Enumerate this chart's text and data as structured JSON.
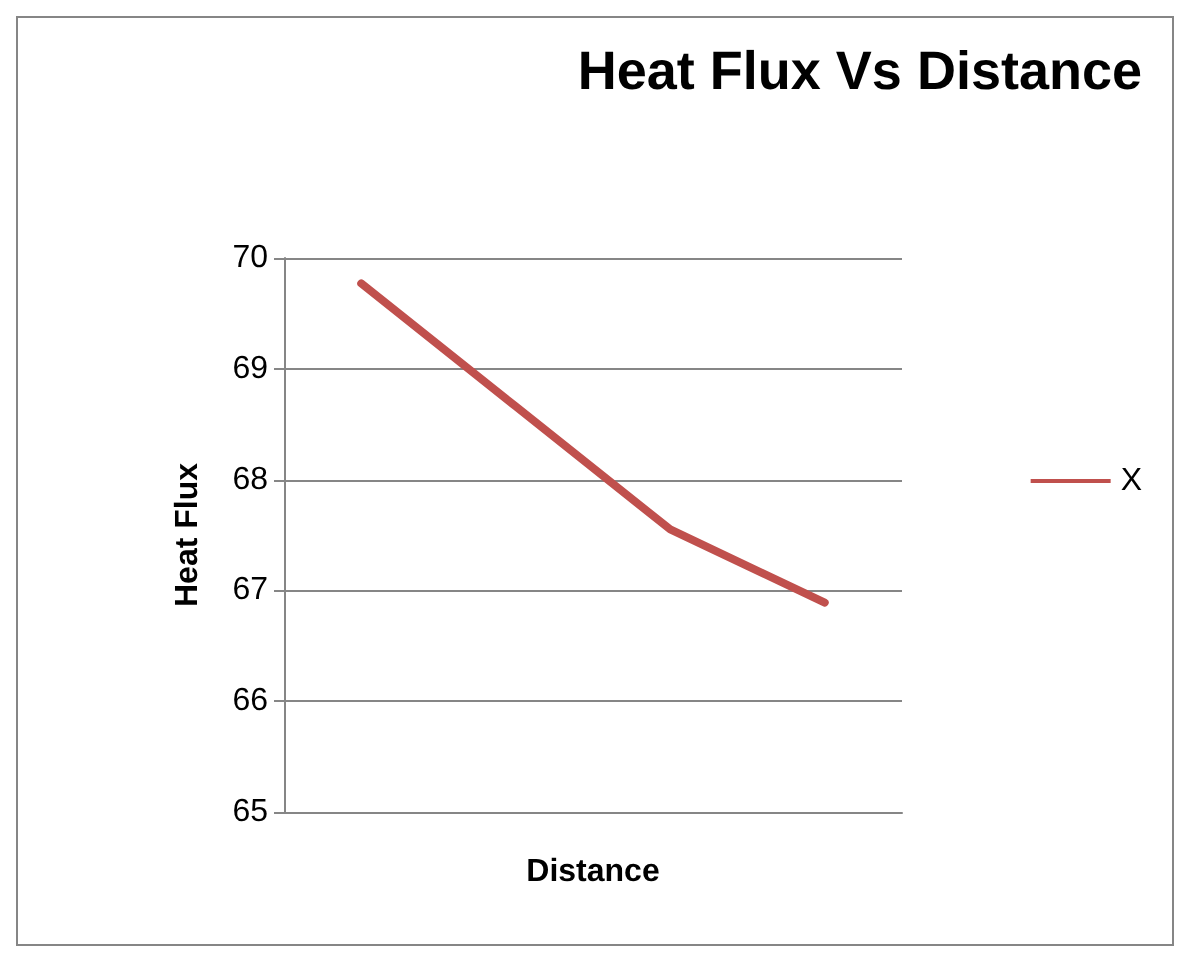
{
  "chart_data": {
    "type": "line",
    "title": "Heat Flux Vs Distance",
    "xlabel": "Distance",
    "ylabel": "Heat Flux",
    "categories": [
      null,
      null,
      null,
      null
    ],
    "series": [
      {
        "name": "X",
        "color": "#c0504d",
        "values": [
          69.77,
          68.66,
          67.55,
          66.89
        ]
      }
    ],
    "ylim": [
      65,
      70
    ],
    "yticks": [
      65,
      66,
      67,
      68,
      69,
      70
    ],
    "grid": "y",
    "legend": "right",
    "marker": "none"
  }
}
